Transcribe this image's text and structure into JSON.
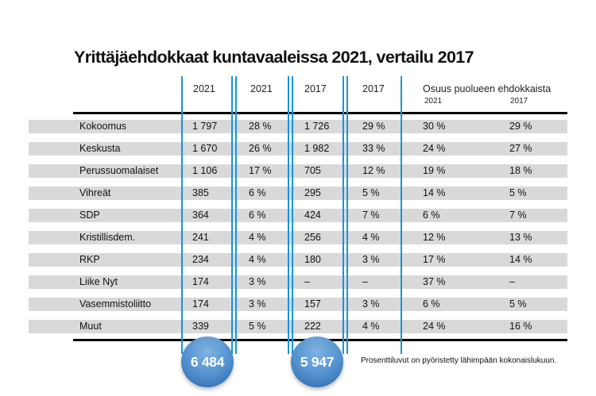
{
  "chart_data": {
    "type": "table",
    "title": "Yrittäjäehdokkaat kuntavaaleissa 2021, vertailu 2017",
    "columns": [
      "",
      "2021",
      "2021",
      "2017",
      "2017",
      "Osuus puolueen ehdokkaista 2021",
      "Osuus puolueen ehdokkaista 2017"
    ],
    "header": {
      "c1": "2021",
      "c2": "2021",
      "c3": "2017",
      "c4": "2017",
      "group": "Osuus puolueen ehdokkaista",
      "group_sub1": "2021",
      "group_sub2": "2017"
    },
    "rows": [
      {
        "party": "Kokoomus",
        "n2021": "1 797",
        "p2021": "28 %",
        "n2017": "1 726",
        "p2017": "29 %",
        "s2021": "30 %",
        "s2017": "29 %"
      },
      {
        "party": "Keskusta",
        "n2021": "1 670",
        "p2021": "26 %",
        "n2017": "1 982",
        "p2017": "33 %",
        "s2021": "24 %",
        "s2017": "27 %"
      },
      {
        "party": "Perussuomalaiset",
        "n2021": "1 106",
        "p2021": "17 %",
        "n2017": "705",
        "p2017": "12 %",
        "s2021": "19 %",
        "s2017": "18 %"
      },
      {
        "party": "Vihreät",
        "n2021": "385",
        "p2021": "6 %",
        "n2017": "295",
        "p2017": "5 %",
        "s2021": "14 %",
        "s2017": "5 %"
      },
      {
        "party": "SDP",
        "n2021": "364",
        "p2021": "6 %",
        "n2017": "424",
        "p2017": "7 %",
        "s2021": "6 %",
        "s2017": "7 %"
      },
      {
        "party": "Kristillisdem.",
        "n2021": "241",
        "p2021": "4 %",
        "n2017": "256",
        "p2017": "4 %",
        "s2021": "12 %",
        "s2017": "13 %"
      },
      {
        "party": "RKP",
        "n2021": "234",
        "p2021": "4 %",
        "n2017": "180",
        "p2017": "3 %",
        "s2021": "17 %",
        "s2017": "14 %"
      },
      {
        "party": "Liike Nyt",
        "n2021": "174",
        "p2021": "3 %",
        "n2017": "–",
        "p2017": "–",
        "s2021": "37 %",
        "s2017": "–"
      },
      {
        "party": "Vasemmistoliitto",
        "n2021": "174",
        "p2021": "3 %",
        "n2017": "157",
        "p2017": "3 %",
        "s2021": "6 %",
        "s2017": "5 %"
      },
      {
        "party": "Muut",
        "n2021": "339",
        "p2021": "5 %",
        "n2017": "222",
        "p2017": "4 %",
        "s2021": "24 %",
        "s2017": "16 %"
      }
    ],
    "totals": {
      "t2021": "6 484",
      "t2017": "5 947"
    },
    "note": "Prosenttiluvut on pyöristetty lähimpään kokonaislukuun."
  },
  "colors": {
    "accent_line": "#1a93dd",
    "band": "#d9d9d9",
    "bubble": "#5a97d2"
  }
}
